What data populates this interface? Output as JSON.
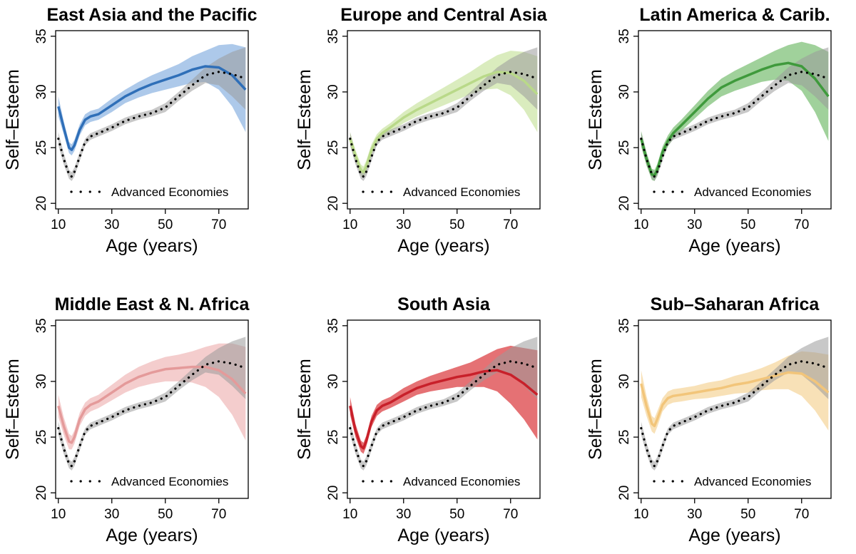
{
  "chart_data": [
    {
      "type": "line",
      "title": "East Asia and the Pacific",
      "xlabel": "Age (years)",
      "ylabel": "Self–Esteem",
      "xlim": [
        9,
        81
      ],
      "ylim": [
        19.5,
        35.5
      ],
      "xticks": [
        "10",
        "30",
        "50",
        "70"
      ],
      "yticks": [
        "20",
        "25",
        "30",
        "35"
      ],
      "legend": {
        "label": "Advanced Economies",
        "placement": "bottom"
      },
      "color": "#2f6fb8",
      "band_color": "#9fbfe6",
      "series": [
        {
          "x": [
            10,
            12,
            14,
            15,
            16,
            18,
            20,
            22,
            25,
            30,
            35,
            40,
            45,
            50,
            55,
            60,
            65,
            70,
            75,
            80
          ],
          "y": [
            28.7,
            26.8,
            25.0,
            24.8,
            25.2,
            26.6,
            27.5,
            27.8,
            28.0,
            28.8,
            29.6,
            30.2,
            30.7,
            31.1,
            31.5,
            32.0,
            32.3,
            32.2,
            31.5,
            30.2
          ],
          "band": [
            0.9,
            0.6,
            0.5,
            0.5,
            0.5,
            0.5,
            0.5,
            0.5,
            0.5,
            0.6,
            0.6,
            0.7,
            0.8,
            0.9,
            1.0,
            1.2,
            1.4,
            2.0,
            2.8,
            3.8
          ]
        }
      ]
    },
    {
      "type": "line",
      "title": "Europe and Central Asia",
      "xlabel": "Age (years)",
      "ylabel": "Self–Esteem",
      "xlim": [
        9,
        81
      ],
      "ylim": [
        19.5,
        35.5
      ],
      "xticks": [
        "10",
        "30",
        "50",
        "70"
      ],
      "yticks": [
        "20",
        "25",
        "30",
        "35"
      ],
      "legend": {
        "label": "Advanced Economies",
        "placement": "bottom"
      },
      "color": "#b9d989",
      "band_color": "#d3e9b3",
      "series": [
        {
          "x": [
            10,
            12,
            14,
            15,
            16,
            18,
            20,
            22,
            25,
            30,
            35,
            40,
            45,
            50,
            55,
            60,
            65,
            70,
            75,
            80
          ],
          "y": [
            25.8,
            24.3,
            23.0,
            22.8,
            23.3,
            24.8,
            25.8,
            26.3,
            26.8,
            27.7,
            28.4,
            29.0,
            29.6,
            30.2,
            30.8,
            31.4,
            31.8,
            31.7,
            31.0,
            29.8
          ],
          "band": [
            0.6,
            0.5,
            0.5,
            0.5,
            0.5,
            0.5,
            0.4,
            0.4,
            0.4,
            0.5,
            0.6,
            0.7,
            0.8,
            0.9,
            1.0,
            1.2,
            1.5,
            2.0,
            2.6,
            3.4
          ]
        }
      ]
    },
    {
      "type": "line",
      "title": "Latin America & Carib.",
      "xlabel": "Age (years)",
      "ylabel": "Self–Esteem",
      "xlim": [
        9,
        81
      ],
      "ylim": [
        19.5,
        35.5
      ],
      "xticks": [
        "10",
        "30",
        "50",
        "70"
      ],
      "yticks": [
        "20",
        "25",
        "30",
        "35"
      ],
      "legend": {
        "label": "Advanced Economies",
        "placement": "bottom"
      },
      "color": "#3f9a3c",
      "band_color": "#8fc98a",
      "series": [
        {
          "x": [
            10,
            12,
            14,
            15,
            16,
            18,
            20,
            22,
            25,
            30,
            35,
            40,
            45,
            50,
            55,
            60,
            65,
            70,
            75,
            80
          ],
          "y": [
            25.8,
            24.0,
            22.6,
            22.5,
            23.0,
            24.6,
            25.6,
            26.3,
            27.0,
            28.2,
            29.4,
            30.4,
            31.0,
            31.5,
            32.0,
            32.4,
            32.6,
            32.3,
            31.2,
            29.6
          ],
          "band": [
            0.7,
            0.6,
            0.5,
            0.5,
            0.5,
            0.5,
            0.5,
            0.5,
            0.5,
            0.6,
            0.7,
            0.8,
            0.9,
            1.0,
            1.1,
            1.3,
            1.6,
            2.2,
            3.0,
            4.0
          ]
        }
      ]
    },
    {
      "type": "line",
      "title": "Middle East & N. Africa",
      "xlabel": "Age (years)",
      "ylabel": "Self–Esteem",
      "xlim": [
        9,
        81
      ],
      "ylim": [
        19.5,
        35.5
      ],
      "xticks": [
        "10",
        "30",
        "50",
        "70"
      ],
      "yticks": [
        "20",
        "25",
        "30",
        "35"
      ],
      "legend": {
        "label": "Advanced Economies",
        "placement": "bottom"
      },
      "color": "#e49a9a",
      "band_color": "#f2c4c4",
      "series": [
        {
          "x": [
            10,
            12,
            14,
            15,
            16,
            18,
            20,
            22,
            25,
            30,
            35,
            40,
            45,
            50,
            55,
            60,
            65,
            70,
            75,
            80
          ],
          "y": [
            27.8,
            26.0,
            24.6,
            24.5,
            25.0,
            26.6,
            27.5,
            27.9,
            28.2,
            29.0,
            29.8,
            30.4,
            30.8,
            31.1,
            31.2,
            31.3,
            31.3,
            31.0,
            30.2,
            28.9
          ],
          "band": [
            1.0,
            0.8,
            0.7,
            0.6,
            0.6,
            0.6,
            0.6,
            0.6,
            0.6,
            0.7,
            0.8,
            0.9,
            1.0,
            1.1,
            1.2,
            1.4,
            1.8,
            2.4,
            3.2,
            4.2
          ]
        }
      ]
    },
    {
      "type": "line",
      "title": "South Asia",
      "xlabel": "Age (years)",
      "ylabel": "Self–Esteem",
      "xlim": [
        9,
        81
      ],
      "ylim": [
        19.5,
        35.5
      ],
      "xticks": [
        "10",
        "30",
        "50",
        "70"
      ],
      "yticks": [
        "20",
        "25",
        "30",
        "35"
      ],
      "legend": {
        "label": "Advanced Economies",
        "placement": "bottom"
      },
      "color": "#c8202a",
      "band_color": "#e0585c",
      "series": [
        {
          "x": [
            10,
            12,
            14,
            15,
            16,
            18,
            20,
            22,
            25,
            30,
            35,
            40,
            45,
            50,
            55,
            60,
            65,
            70,
            75,
            80
          ],
          "y": [
            27.8,
            25.6,
            24.2,
            24.0,
            24.6,
            26.4,
            27.4,
            27.8,
            28.1,
            28.8,
            29.4,
            29.8,
            30.1,
            30.4,
            30.6,
            30.9,
            31.0,
            30.6,
            29.8,
            28.8
          ],
          "band": [
            0.8,
            0.6,
            0.5,
            0.5,
            0.5,
            0.5,
            0.5,
            0.5,
            0.5,
            0.6,
            0.6,
            0.7,
            0.8,
            0.9,
            1.1,
            1.4,
            1.9,
            2.6,
            3.2,
            4.0
          ]
        }
      ]
    },
    {
      "type": "line",
      "title": "Sub–Saharan Africa",
      "xlabel": "Age (years)",
      "ylabel": "Self–Esteem",
      "xlim": [
        9,
        81
      ],
      "ylim": [
        19.5,
        35.5
      ],
      "xticks": [
        "10",
        "30",
        "50",
        "70"
      ],
      "yticks": [
        "20",
        "25",
        "30",
        "35"
      ],
      "legend": {
        "label": "Advanced Economies",
        "placement": "bottom"
      },
      "color": "#f2c57a",
      "band_color": "#f7dcaa",
      "series": [
        {
          "x": [
            10,
            12,
            14,
            15,
            16,
            18,
            20,
            22,
            25,
            30,
            35,
            40,
            45,
            50,
            55,
            60,
            65,
            70,
            75,
            80
          ],
          "y": [
            29.8,
            27.8,
            26.2,
            26.0,
            26.6,
            27.9,
            28.5,
            28.7,
            28.8,
            29.0,
            29.2,
            29.4,
            29.7,
            29.9,
            30.2,
            30.5,
            30.8,
            30.7,
            30.0,
            29.0
          ],
          "band": [
            1.2,
            0.9,
            0.7,
            0.7,
            0.7,
            0.6,
            0.6,
            0.6,
            0.6,
            0.6,
            0.7,
            0.7,
            0.8,
            0.9,
            1.0,
            1.2,
            1.5,
            2.0,
            2.6,
            3.4
          ]
        }
      ]
    }
  ],
  "reference": {
    "name": "Advanced Economies",
    "x": [
      10,
      12,
      14,
      15,
      16,
      18,
      20,
      22,
      25,
      30,
      35,
      40,
      45,
      50,
      55,
      60,
      65,
      70,
      75,
      80
    ],
    "y": [
      25.8,
      24.0,
      22.6,
      22.4,
      22.8,
      24.2,
      25.5,
      26.0,
      26.3,
      26.8,
      27.4,
      27.8,
      28.1,
      28.6,
      29.6,
      30.6,
      31.5,
      31.8,
      31.6,
      31.2
    ],
    "band": [
      0.6,
      0.5,
      0.4,
      0.4,
      0.4,
      0.4,
      0.3,
      0.3,
      0.3,
      0.3,
      0.3,
      0.3,
      0.3,
      0.4,
      0.4,
      0.5,
      0.7,
      1.2,
      2.0,
      2.8
    ],
    "line_color": "#000000",
    "band_color": "#9a9a9a"
  }
}
